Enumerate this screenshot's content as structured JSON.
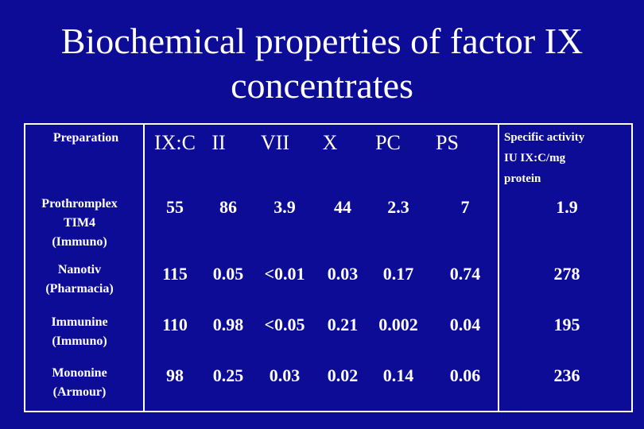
{
  "title_line1": "Biochemical properties of factor IX",
  "title_line2": "concentrates",
  "headers": {
    "preparation": "Preparation",
    "ix_c": "IX:C",
    "ii": "II",
    "vii": "VII",
    "x": "X",
    "pc": "PC",
    "ps": "PS",
    "specific_1": "Specific activity",
    "specific_2": "IU IX:C/mg",
    "specific_3": "protein"
  },
  "rows": [
    {
      "prep": [
        "Prothromplex",
        "TIM4",
        "(Immuno)"
      ],
      "ixc": "55",
      "ii": "86",
      "vii": "3.9",
      "x": "44",
      "pc": "2.3",
      "ps": "7",
      "spec": "1.9"
    },
    {
      "prep": [
        "Nanotiv",
        "(Pharmacia)"
      ],
      "ixc": "115",
      "ii": "0.05",
      "vii": "<0.01",
      "x": "0.03",
      "pc": "0.17",
      "ps": "0.74",
      "spec": "278"
    },
    {
      "prep": [
        "Immunine",
        "(Immuno)"
      ],
      "ixc": "110",
      "ii": "0.98",
      "vii": "<0.05",
      "x": "0.21",
      "pc": "0.002",
      "ps": "0.04",
      "spec": "195"
    },
    {
      "prep": [
        "Mononine",
        "(Armour)"
      ],
      "ixc": "98",
      "ii": "0.25",
      "vii": "0.03",
      "x": "0.02",
      "pc": "0.14",
      "ps": "0.06",
      "spec": "236"
    }
  ]
}
